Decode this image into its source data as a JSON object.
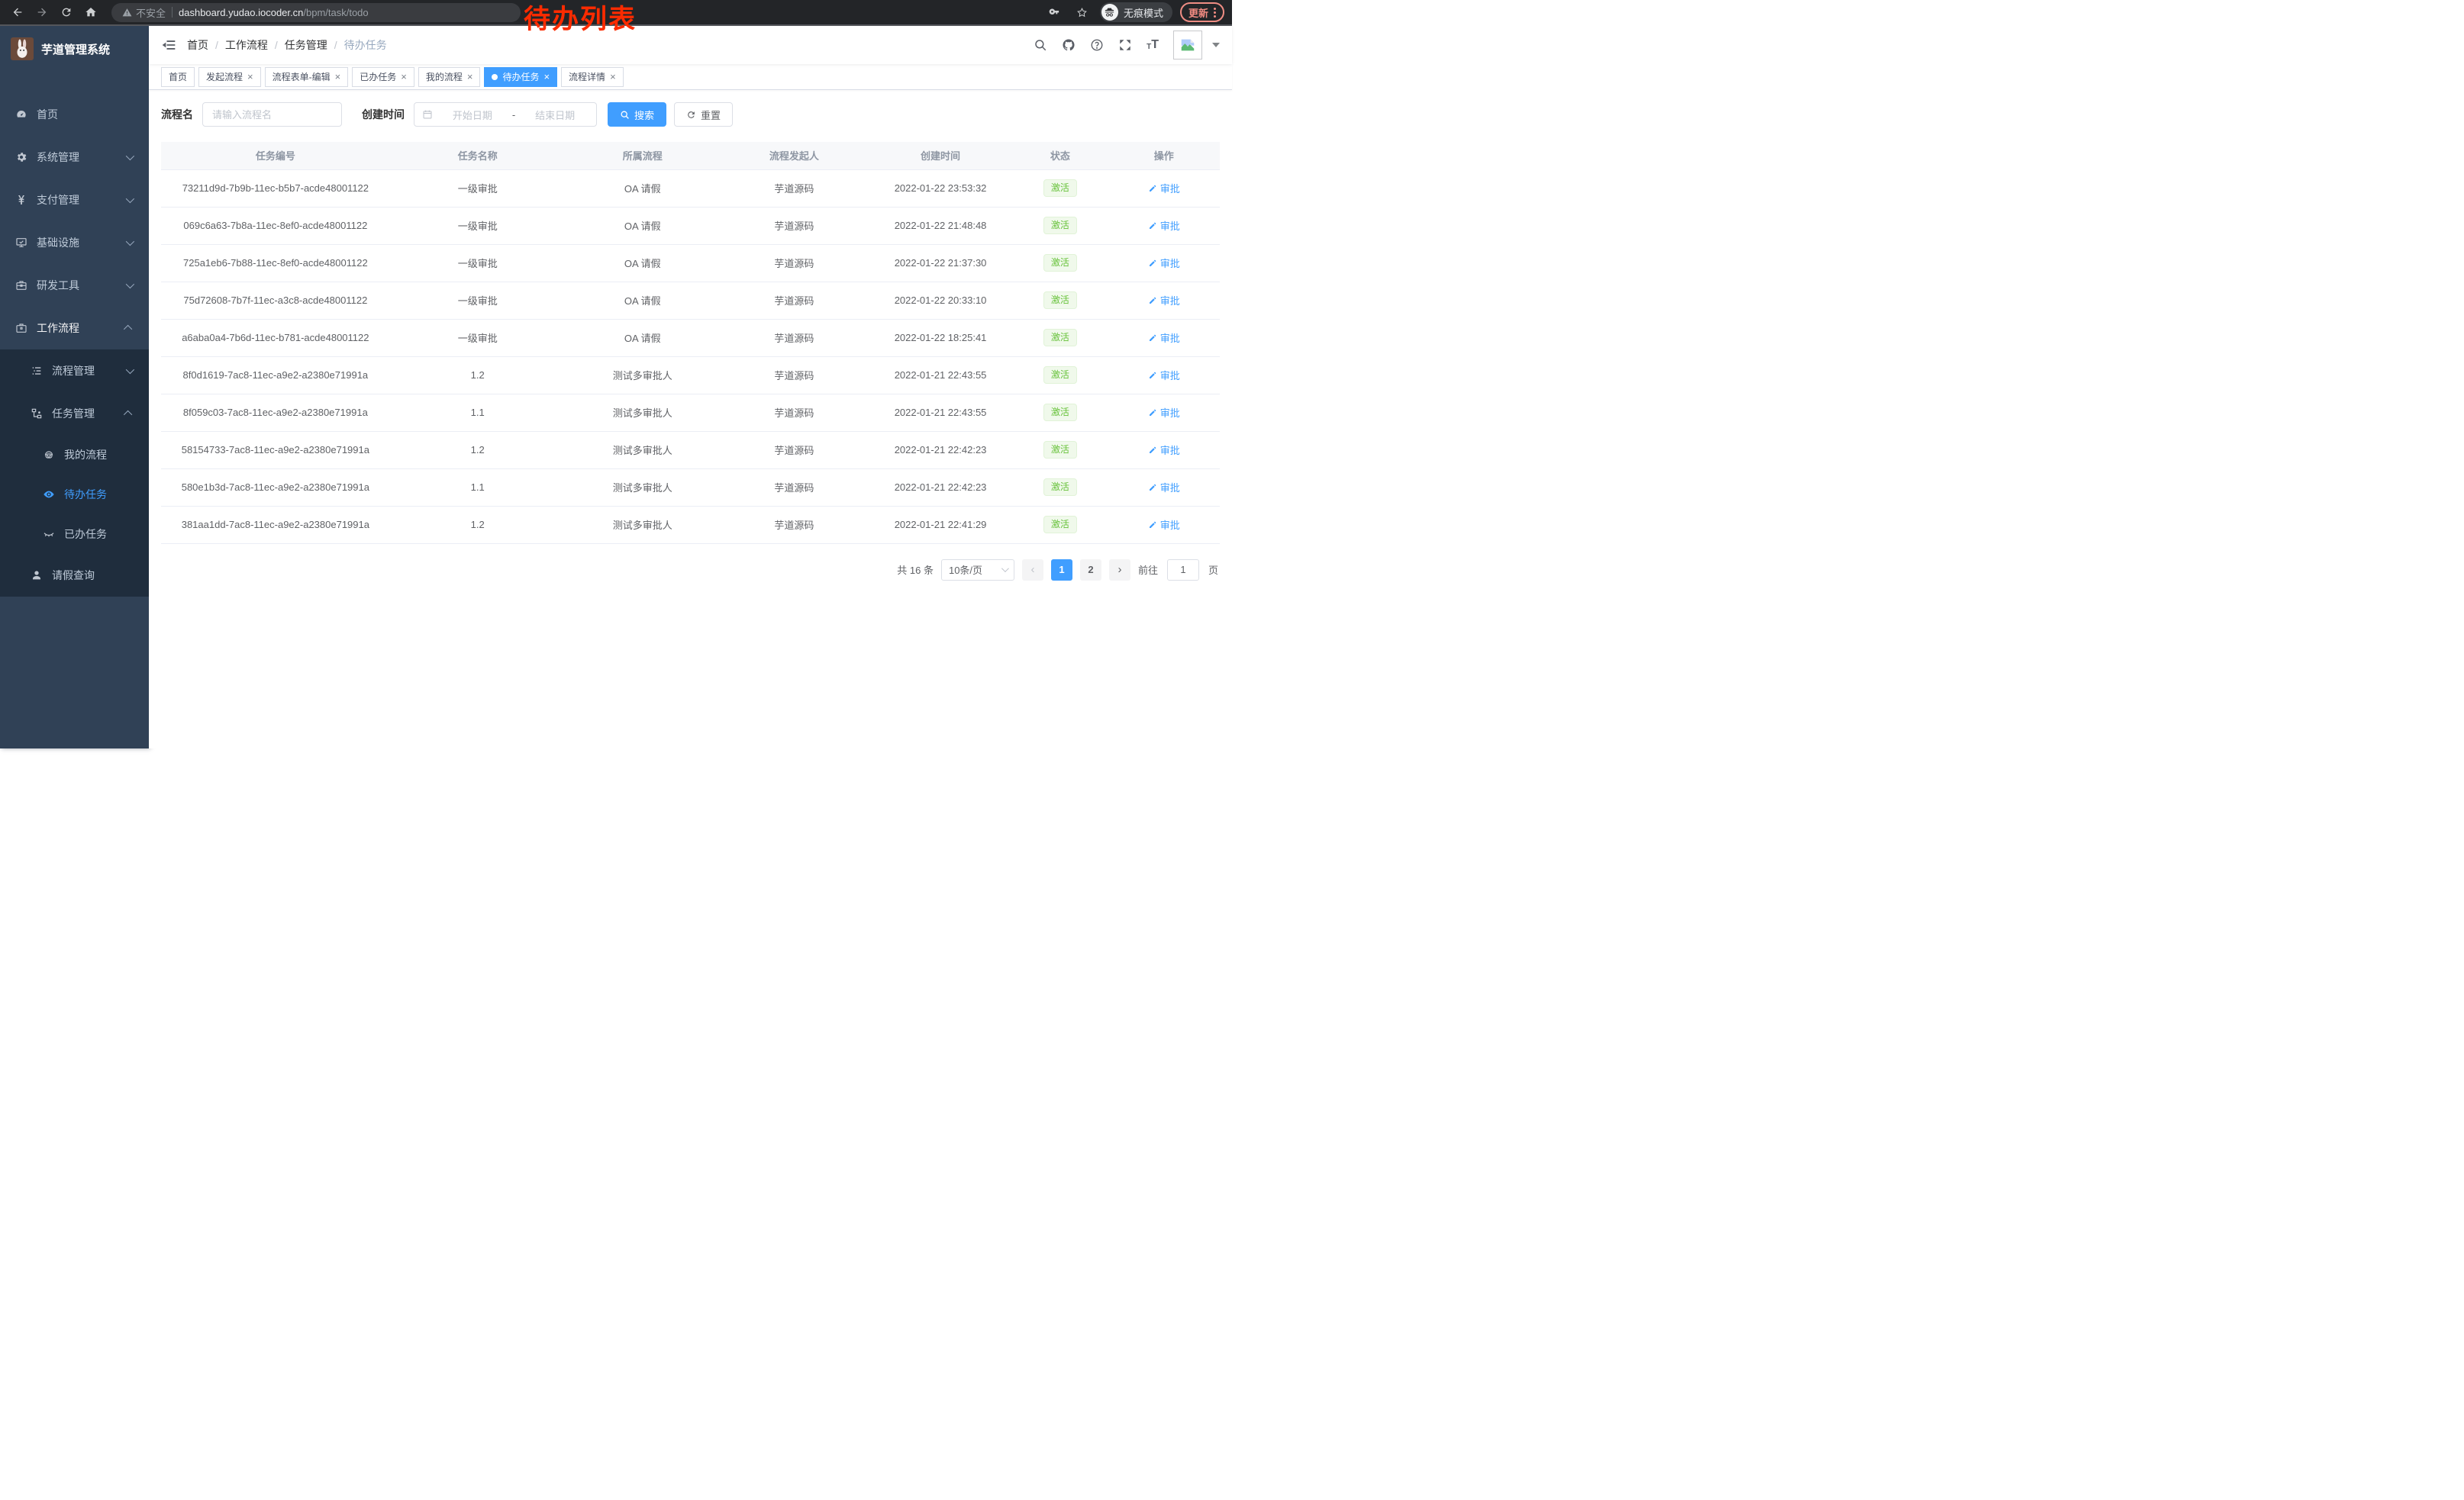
{
  "browser": {
    "security_label": "不安全",
    "url_domain": "dashboard.yudao.iocoder.cn",
    "url_path": "/bpm/task/todo",
    "incognito_label": "无痕模式",
    "update_label": "更新"
  },
  "annotation": {
    "text": "待办列表"
  },
  "sidebar": {
    "logo_title": "芋道管理系统",
    "menu": [
      {
        "label": "首页",
        "icon": "dashboard-icon",
        "level": 1
      },
      {
        "label": "系统管理",
        "icon": "gear-icon",
        "level": 1,
        "expand": "down"
      },
      {
        "label": "支付管理",
        "icon": "yen-icon",
        "level": 1,
        "expand": "down"
      },
      {
        "label": "基础设施",
        "icon": "infrastructure-icon",
        "level": 1,
        "expand": "down"
      },
      {
        "label": "研发工具",
        "icon": "dev-tools-icon",
        "level": 1,
        "expand": "down"
      },
      {
        "label": "工作流程",
        "icon": "workflow-icon",
        "level": 1,
        "expand": "up",
        "highlight": true
      },
      {
        "label": "流程管理",
        "icon": "process-management-icon",
        "level": 2,
        "expand": "down",
        "sub": true
      },
      {
        "label": "任务管理",
        "icon": "task-management-icon",
        "level": 2,
        "expand": "up",
        "sub": true
      },
      {
        "label": "我的流程",
        "icon": "my-process-icon",
        "level": 3,
        "sub": true
      },
      {
        "label": "待办任务",
        "icon": "eye-icon",
        "level": 3,
        "sub": true,
        "active": true
      },
      {
        "label": "已办任务",
        "icon": "eye-closed-icon",
        "level": 3,
        "sub": true
      },
      {
        "label": "请假查询",
        "icon": "person-icon",
        "level": 2,
        "sub": true
      }
    ]
  },
  "breadcrumb": {
    "items": [
      "首页",
      "工作流程",
      "任务管理",
      "待办任务"
    ]
  },
  "navbar_icons": [
    "search-icon",
    "github-icon",
    "help-icon",
    "fullscreen-icon"
  ],
  "tabs": [
    {
      "label": "首页",
      "closable": false,
      "active": false
    },
    {
      "label": "发起流程",
      "closable": true,
      "active": false
    },
    {
      "label": "流程表单-编辑",
      "closable": true,
      "active": false
    },
    {
      "label": "已办任务",
      "closable": true,
      "active": false
    },
    {
      "label": "我的流程",
      "closable": true,
      "active": false
    },
    {
      "label": "待办任务",
      "closable": true,
      "active": true
    },
    {
      "label": "流程详情",
      "closable": true,
      "active": false
    }
  ],
  "filters": {
    "process_name_label": "流程名",
    "process_name_placeholder": "请输入流程名",
    "create_time_label": "创建时间",
    "start_date_placeholder": "开始日期",
    "date_separator": "-",
    "end_date_placeholder": "结束日期",
    "search_label": "搜索",
    "reset_label": "重置"
  },
  "table": {
    "columns": [
      "任务编号",
      "任务名称",
      "所属流程",
      "流程发起人",
      "创建时间",
      "状态",
      "操作"
    ],
    "rows": [
      {
        "id": "73211d9d-7b9b-11ec-b5b7-acde48001122",
        "name": "一级审批",
        "process": "OA 请假",
        "initiator": "芋道源码",
        "created": "2022-01-22 23:53:32",
        "status": "激活",
        "action": "审批"
      },
      {
        "id": "069c6a63-7b8a-11ec-8ef0-acde48001122",
        "name": "一级审批",
        "process": "OA 请假",
        "initiator": "芋道源码",
        "created": "2022-01-22 21:48:48",
        "status": "激活",
        "action": "审批"
      },
      {
        "id": "725a1eb6-7b88-11ec-8ef0-acde48001122",
        "name": "一级审批",
        "process": "OA 请假",
        "initiator": "芋道源码",
        "created": "2022-01-22 21:37:30",
        "status": "激活",
        "action": "审批"
      },
      {
        "id": "75d72608-7b7f-11ec-a3c8-acde48001122",
        "name": "一级审批",
        "process": "OA 请假",
        "initiator": "芋道源码",
        "created": "2022-01-22 20:33:10",
        "status": "激活",
        "action": "审批"
      },
      {
        "id": "a6aba0a4-7b6d-11ec-b781-acde48001122",
        "name": "一级审批",
        "process": "OA 请假",
        "initiator": "芋道源码",
        "created": "2022-01-22 18:25:41",
        "status": "激活",
        "action": "审批"
      },
      {
        "id": "8f0d1619-7ac8-11ec-a9e2-a2380e71991a",
        "name": "1.2",
        "process": "测试多审批人",
        "initiator": "芋道源码",
        "created": "2022-01-21 22:43:55",
        "status": "激活",
        "action": "审批"
      },
      {
        "id": "8f059c03-7ac8-11ec-a9e2-a2380e71991a",
        "name": "1.1",
        "process": "测试多审批人",
        "initiator": "芋道源码",
        "created": "2022-01-21 22:43:55",
        "status": "激活",
        "action": "审批"
      },
      {
        "id": "58154733-7ac8-11ec-a9e2-a2380e71991a",
        "name": "1.2",
        "process": "测试多审批人",
        "initiator": "芋道源码",
        "created": "2022-01-21 22:42:23",
        "status": "激活",
        "action": "审批"
      },
      {
        "id": "580e1b3d-7ac8-11ec-a9e2-a2380e71991a",
        "name": "1.1",
        "process": "测试多审批人",
        "initiator": "芋道源码",
        "created": "2022-01-21 22:42:23",
        "status": "激活",
        "action": "审批"
      },
      {
        "id": "381aa1dd-7ac8-11ec-a9e2-a2380e71991a",
        "name": "1.2",
        "process": "测试多审批人",
        "initiator": "芋道源码",
        "created": "2022-01-21 22:41:29",
        "status": "激活",
        "action": "审批"
      }
    ]
  },
  "pagination": {
    "total": "共 16 条",
    "page_size": "10条/页",
    "pages": [
      "1",
      "2"
    ],
    "active_page": "1",
    "goto_label": "前往",
    "goto_value": "1",
    "goto_suffix": "页"
  },
  "colors": {
    "accent": "#409eff",
    "sidebar_bg": "#304156",
    "submenu_bg": "#1f2d3d",
    "status_green": "#67c23a",
    "annotation_red": "#fb2b00"
  }
}
